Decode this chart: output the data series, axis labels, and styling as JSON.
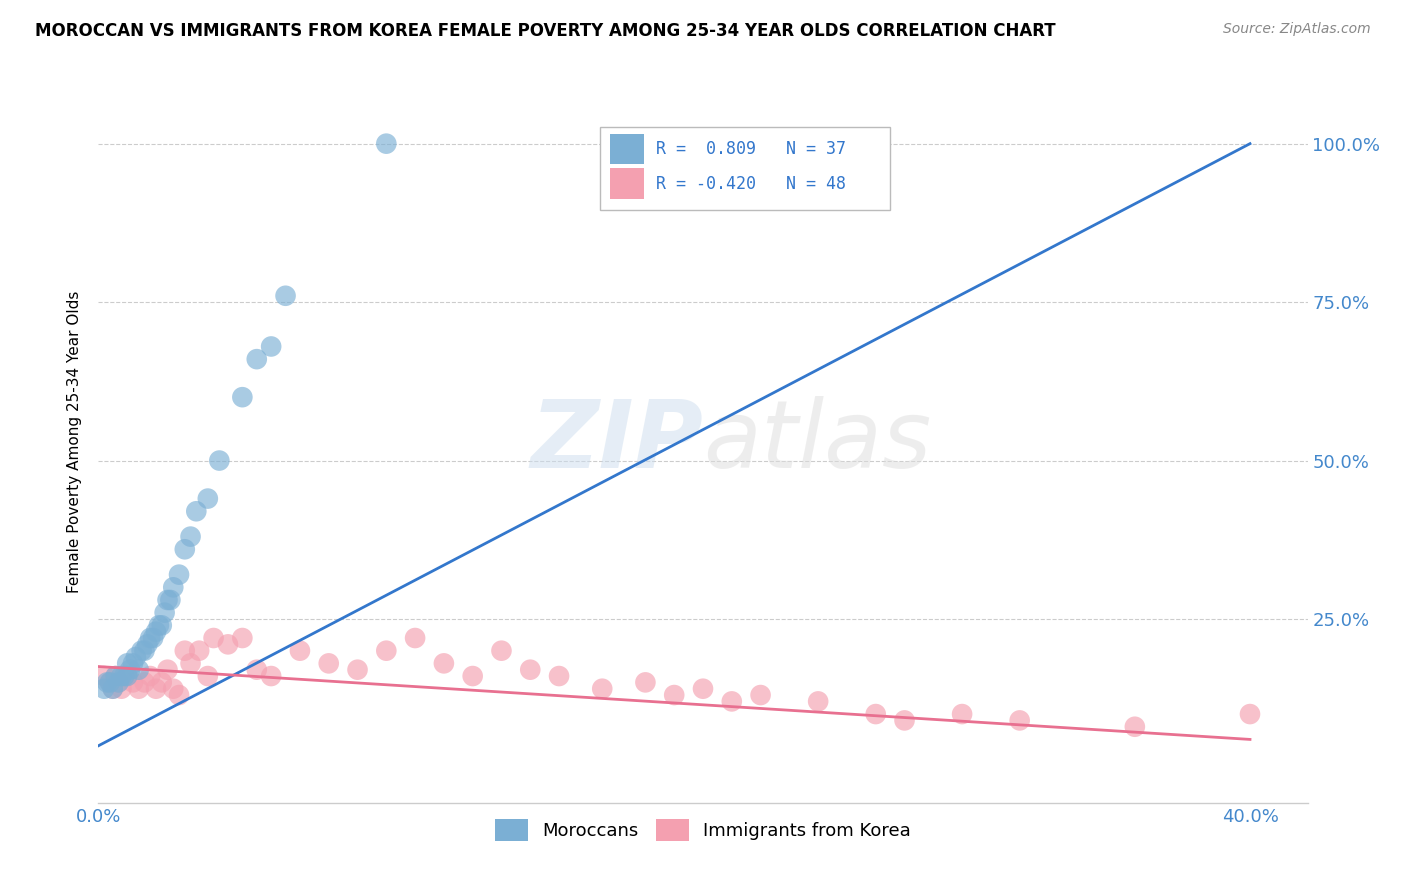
{
  "title": "MOROCCAN VS IMMIGRANTS FROM KOREA FEMALE POVERTY AMONG 25-34 YEAR OLDS CORRELATION CHART",
  "source": "Source: ZipAtlas.com",
  "ylabel": "Female Poverty Among 25-34 Year Olds",
  "xlim": [
    0.0,
    0.42
  ],
  "ylim": [
    -0.04,
    1.1
  ],
  "legend_R_blue": "R =  0.809",
  "legend_N_blue": "N = 37",
  "legend_R_pink": "R = -0.420",
  "legend_N_pink": "N = 48",
  "blue_color": "#7BAFD4",
  "pink_color": "#F4A0B0",
  "line_blue": "#3377CC",
  "line_pink": "#E87090",
  "background_color": "#FFFFFF",
  "grid_color": "#CCCCCC",
  "blue_scatter_x": [
    0.002,
    0.003,
    0.004,
    0.005,
    0.006,
    0.007,
    0.008,
    0.009,
    0.01,
    0.01,
    0.011,
    0.012,
    0.013,
    0.014,
    0.015,
    0.016,
    0.017,
    0.018,
    0.019,
    0.02,
    0.021,
    0.022,
    0.023,
    0.024,
    0.025,
    0.026,
    0.028,
    0.03,
    0.032,
    0.034,
    0.038,
    0.042,
    0.05,
    0.055,
    0.06,
    0.065,
    0.1
  ],
  "blue_scatter_y": [
    0.14,
    0.15,
    0.15,
    0.14,
    0.16,
    0.15,
    0.16,
    0.16,
    0.18,
    0.16,
    0.17,
    0.18,
    0.19,
    0.17,
    0.2,
    0.2,
    0.21,
    0.22,
    0.22,
    0.23,
    0.24,
    0.24,
    0.26,
    0.28,
    0.28,
    0.3,
    0.32,
    0.36,
    0.38,
    0.42,
    0.44,
    0.5,
    0.6,
    0.66,
    0.68,
    0.76,
    1.0
  ],
  "pink_scatter_x": [
    0.002,
    0.004,
    0.005,
    0.006,
    0.007,
    0.008,
    0.01,
    0.012,
    0.014,
    0.016,
    0.018,
    0.02,
    0.022,
    0.024,
    0.026,
    0.028,
    0.03,
    0.032,
    0.035,
    0.038,
    0.04,
    0.045,
    0.05,
    0.055,
    0.06,
    0.07,
    0.08,
    0.09,
    0.1,
    0.11,
    0.12,
    0.13,
    0.14,
    0.15,
    0.16,
    0.175,
    0.19,
    0.2,
    0.21,
    0.22,
    0.23,
    0.25,
    0.27,
    0.28,
    0.3,
    0.32,
    0.36,
    0.4
  ],
  "pink_scatter_y": [
    0.16,
    0.15,
    0.14,
    0.16,
    0.15,
    0.14,
    0.16,
    0.15,
    0.14,
    0.15,
    0.16,
    0.14,
    0.15,
    0.17,
    0.14,
    0.13,
    0.2,
    0.18,
    0.2,
    0.16,
    0.22,
    0.21,
    0.22,
    0.17,
    0.16,
    0.2,
    0.18,
    0.17,
    0.2,
    0.22,
    0.18,
    0.16,
    0.2,
    0.17,
    0.16,
    0.14,
    0.15,
    0.13,
    0.14,
    0.12,
    0.13,
    0.12,
    0.1,
    0.09,
    0.1,
    0.09,
    0.08,
    0.1
  ],
  "blue_line_x": [
    0.0,
    0.4
  ],
  "blue_line_y": [
    0.05,
    1.0
  ],
  "pink_line_x": [
    0.0,
    0.4
  ],
  "pink_line_y": [
    0.175,
    0.06
  ]
}
